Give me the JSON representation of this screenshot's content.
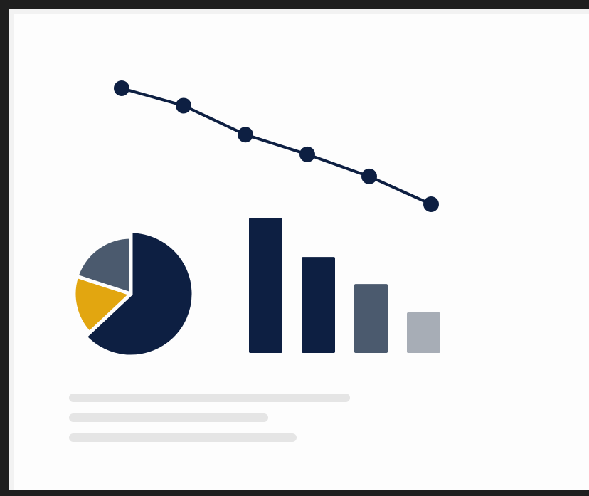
{
  "colors": {
    "navy": "#0d1f42",
    "slate": "#4b5a6e",
    "silver": "#a7adb6",
    "gold": "#e2a610",
    "placeholder": "#e5e5e5",
    "frame": "#1f1f1f"
  },
  "chart_data": [
    {
      "type": "line",
      "x": [
        1,
        2,
        3,
        4,
        5,
        6
      ],
      "values": [
        10,
        8.5,
        6,
        4.3,
        2.4,
        0
      ],
      "ylim": [
        0,
        10
      ],
      "markers": true,
      "grid": false
    },
    {
      "type": "pie",
      "values": [
        63,
        17,
        20
      ],
      "colors": [
        "#0d1f42",
        "#e2a610",
        "#4b5a6e"
      ],
      "start_angle_deg": 0
    },
    {
      "type": "bar",
      "values": [
        100,
        71,
        51,
        30
      ],
      "colors": [
        "#0d1f42",
        "#0d1f42",
        "#4b5a6e",
        "#a7adb6"
      ],
      "ylim": [
        0,
        100
      ],
      "grid": false
    }
  ],
  "placeholder_lines": [
    {
      "level": 1.0
    },
    {
      "level": 0.71
    },
    {
      "level": 0.81
    }
  ]
}
